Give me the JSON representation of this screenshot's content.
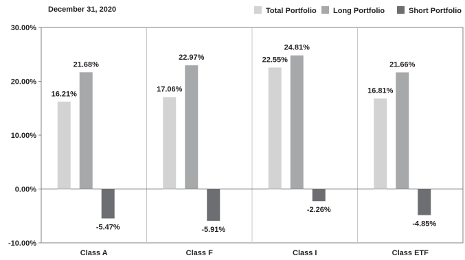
{
  "chart_data": {
    "type": "bar",
    "title": "December 31, 2020",
    "categories": [
      "Class A",
      "Class F",
      "Class I",
      "Class ETF"
    ],
    "series": [
      {
        "name": "Total Portfolio",
        "color": "#d3d3d4",
        "values": [
          16.21,
          17.06,
          22.55,
          16.81
        ]
      },
      {
        "name": "Long Portfolio",
        "color": "#a7a8aa",
        "values": [
          21.68,
          22.97,
          24.81,
          21.66
        ]
      },
      {
        "name": "Short Portfolio",
        "color": "#6d6e71",
        "values": [
          -5.47,
          -5.91,
          -2.26,
          -4.85
        ]
      }
    ],
    "data_labels": [
      [
        "16.21%",
        "21.68%",
        "-5.47%"
      ],
      [
        "17.06%",
        "22.97%",
        "-5.91%"
      ],
      [
        "22.55%",
        "24.81%",
        "-2.26%"
      ],
      [
        "16.81%",
        "21.66%",
        "-4.85%"
      ]
    ],
    "yticks": [
      30,
      20,
      10,
      0,
      -10
    ],
    "ytick_labels": [
      "30.00%",
      "20.00%",
      "10.00%",
      "0.00%",
      "-10.00%"
    ],
    "ylim": [
      -10,
      30
    ],
    "legend_position": "top-right",
    "grid": "vertical category separators",
    "xlabel": "",
    "ylabel": ""
  }
}
